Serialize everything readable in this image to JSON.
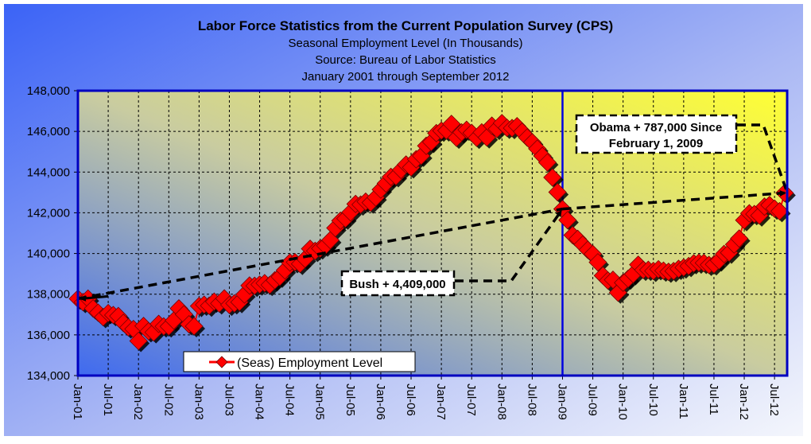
{
  "chart_data": {
    "type": "line",
    "title": "Labor Force Statistics from the Current Population Survey (CPS)",
    "subtitles": [
      "Seasonal Employment Level (In Thousands)",
      "Source: Bureau of Labor Statistics",
      "January 2001 through September 2012"
    ],
    "xlabel": "",
    "ylabel": "",
    "ylim": [
      134000,
      148000
    ],
    "y_ticks": [
      134000,
      136000,
      138000,
      140000,
      142000,
      144000,
      146000,
      148000
    ],
    "y_tick_labels": [
      "134,000",
      "136,000",
      "138,000",
      "140,000",
      "142,000",
      "144,000",
      "146,000",
      "148,000"
    ],
    "x_tick_labels": [
      "Jan-01",
      "Jul-01",
      "Jan-02",
      "Jul-02",
      "Jan-03",
      "Jul-03",
      "Jan-04",
      "Jul-04",
      "Jan-05",
      "Jul-05",
      "Jan-06",
      "Jul-06",
      "Jan-07",
      "Jul-07",
      "Jan-08",
      "Jul-08",
      "Jan-09",
      "Jul-09",
      "Jan-10",
      "Jul-10",
      "Jan-11",
      "Jul-11",
      "Jan-12",
      "Jul-12"
    ],
    "x_start": "Jan-01",
    "x_unit": "month",
    "grid": true,
    "legend": {
      "position": "bottom-left",
      "entries": [
        "(Seas) Employment Level"
      ]
    },
    "series": [
      {
        "name": "(Seas) Employment Level",
        "color": "#ff0000",
        "marker": "diamond",
        "values": [
          137778,
          137612,
          137783,
          137299,
          137092,
          136873,
          137069,
          136974,
          136926,
          136588,
          136368,
          136286,
          135701,
          136438,
          136177,
          136126,
          136539,
          136415,
          136413,
          136705,
          137302,
          137008,
          136521,
          136426,
          137417,
          137482,
          137434,
          137633,
          137544,
          137790,
          137474,
          137549,
          137609,
          137984,
          138424,
          138411,
          138472,
          138542,
          138453,
          138680,
          138852,
          139174,
          139556,
          139573,
          139487,
          139732,
          140231,
          140125,
          140245,
          140385,
          140654,
          141254,
          141609,
          141714,
          142026,
          142434,
          142401,
          142548,
          142499,
          142752,
          143142,
          143444,
          143765,
          143794,
          144108,
          144370,
          144229,
          144631,
          144797,
          145292,
          145477,
          145914,
          146032,
          146043,
          146368,
          145686,
          145952,
          146079,
          145926,
          145685,
          145952,
          145703,
          146282,
          146122,
          146407,
          146176,
          146164,
          146255,
          145989,
          145702,
          145471,
          145151,
          144797,
          144475,
          143735,
          143016,
          142187,
          141638,
          140900,
          140718,
          140437,
          140180,
          139977,
          139567,
          138914,
          138670,
          138708,
          138076,
          138563,
          138759,
          138983,
          139448,
          139195,
          139197,
          139142,
          139225,
          139156,
          139102,
          139135,
          139245,
          139311,
          139383,
          139517,
          139548,
          139535,
          139439,
          139463,
          139655,
          139974,
          140039,
          140441,
          140734,
          141637,
          141974,
          141935,
          141867,
          142302,
          142381,
          142204,
          142079,
          142974
        ]
      }
    ],
    "vertical_marker": {
      "label_month": "Jan-09",
      "month_index": 96
    },
    "annotations": [
      {
        "text_lines": [
          "Bush + 4,409,000"
        ],
        "from_month": 0,
        "from_value": 137778,
        "to_month": 96,
        "to_value": 142187
      },
      {
        "text_lines": [
          "Obama + 787,000 Since",
          "February 1, 2009"
        ],
        "from_month": 96,
        "from_value": 142187,
        "to_month": 140,
        "to_value": 142974
      }
    ]
  },
  "colors": {
    "bg_start": "#3b63f6",
    "bg_end": "#f4f6fc",
    "plot_top_right": "#ffff33",
    "plot_bottom_left": "#3f6af0",
    "axis": "#0000c0",
    "marker": "#ff0000"
  }
}
